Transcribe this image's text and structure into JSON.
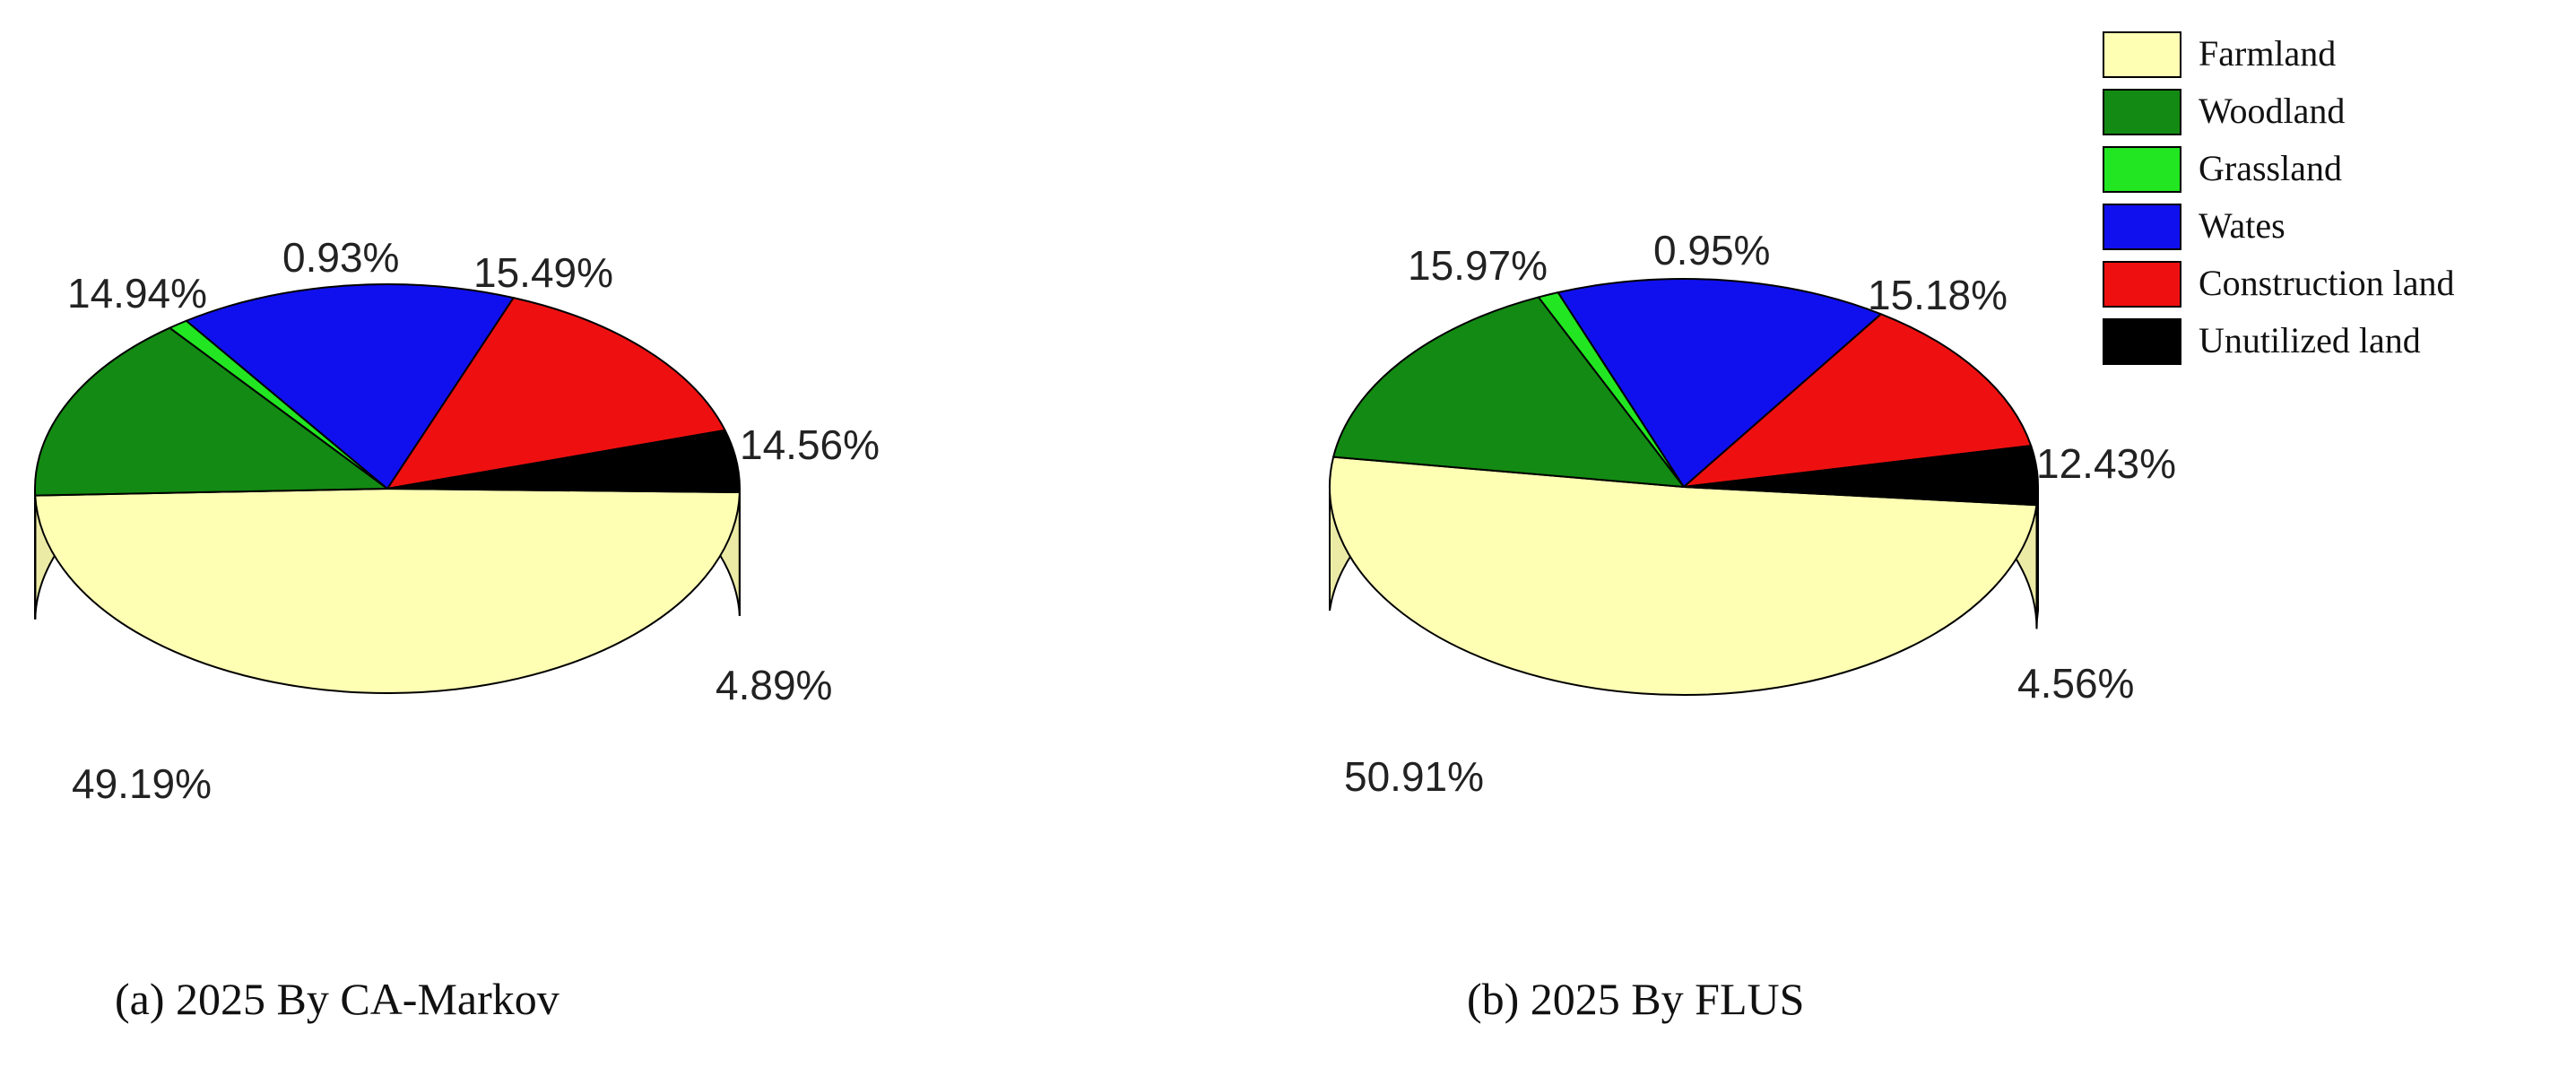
{
  "legend": {
    "items": [
      {
        "label": "Farmland",
        "color": "#ffffb4"
      },
      {
        "label": "Woodland",
        "color": "#138a13"
      },
      {
        "label": "Grassland",
        "color": "#22e622"
      },
      {
        "label": "Wates",
        "color": "#1010ee"
      },
      {
        "label": "Construction land",
        "color": "#ee1010"
      },
      {
        "label": "Unutilized land",
        "color": "#000000"
      }
    ]
  },
  "chart_data": [
    {
      "type": "pie",
      "caption": "(a) 2025 By CA-Markov",
      "categories": [
        "Farmland",
        "Woodland",
        "Grassland",
        "Wates",
        "Construction land",
        "Unutilized land"
      ],
      "values": [
        49.19,
        14.94,
        0.93,
        15.49,
        14.56,
        4.89
      ],
      "labels": [
        "49.19%",
        "14.94%",
        "0.93%",
        "15.49%",
        "14.56%",
        "4.89%"
      ]
    },
    {
      "type": "pie",
      "caption": "(b) 2025 By FLUS",
      "categories": [
        "Farmland",
        "Woodland",
        "Grassland",
        "Wates",
        "Construction land",
        "Unutilized land"
      ],
      "values": [
        50.91,
        15.97,
        0.95,
        15.18,
        12.43,
        4.56
      ],
      "labels": [
        "50.91%",
        "15.97%",
        "0.95%",
        "15.18%",
        "12.43%",
        "4.56%"
      ]
    }
  ]
}
